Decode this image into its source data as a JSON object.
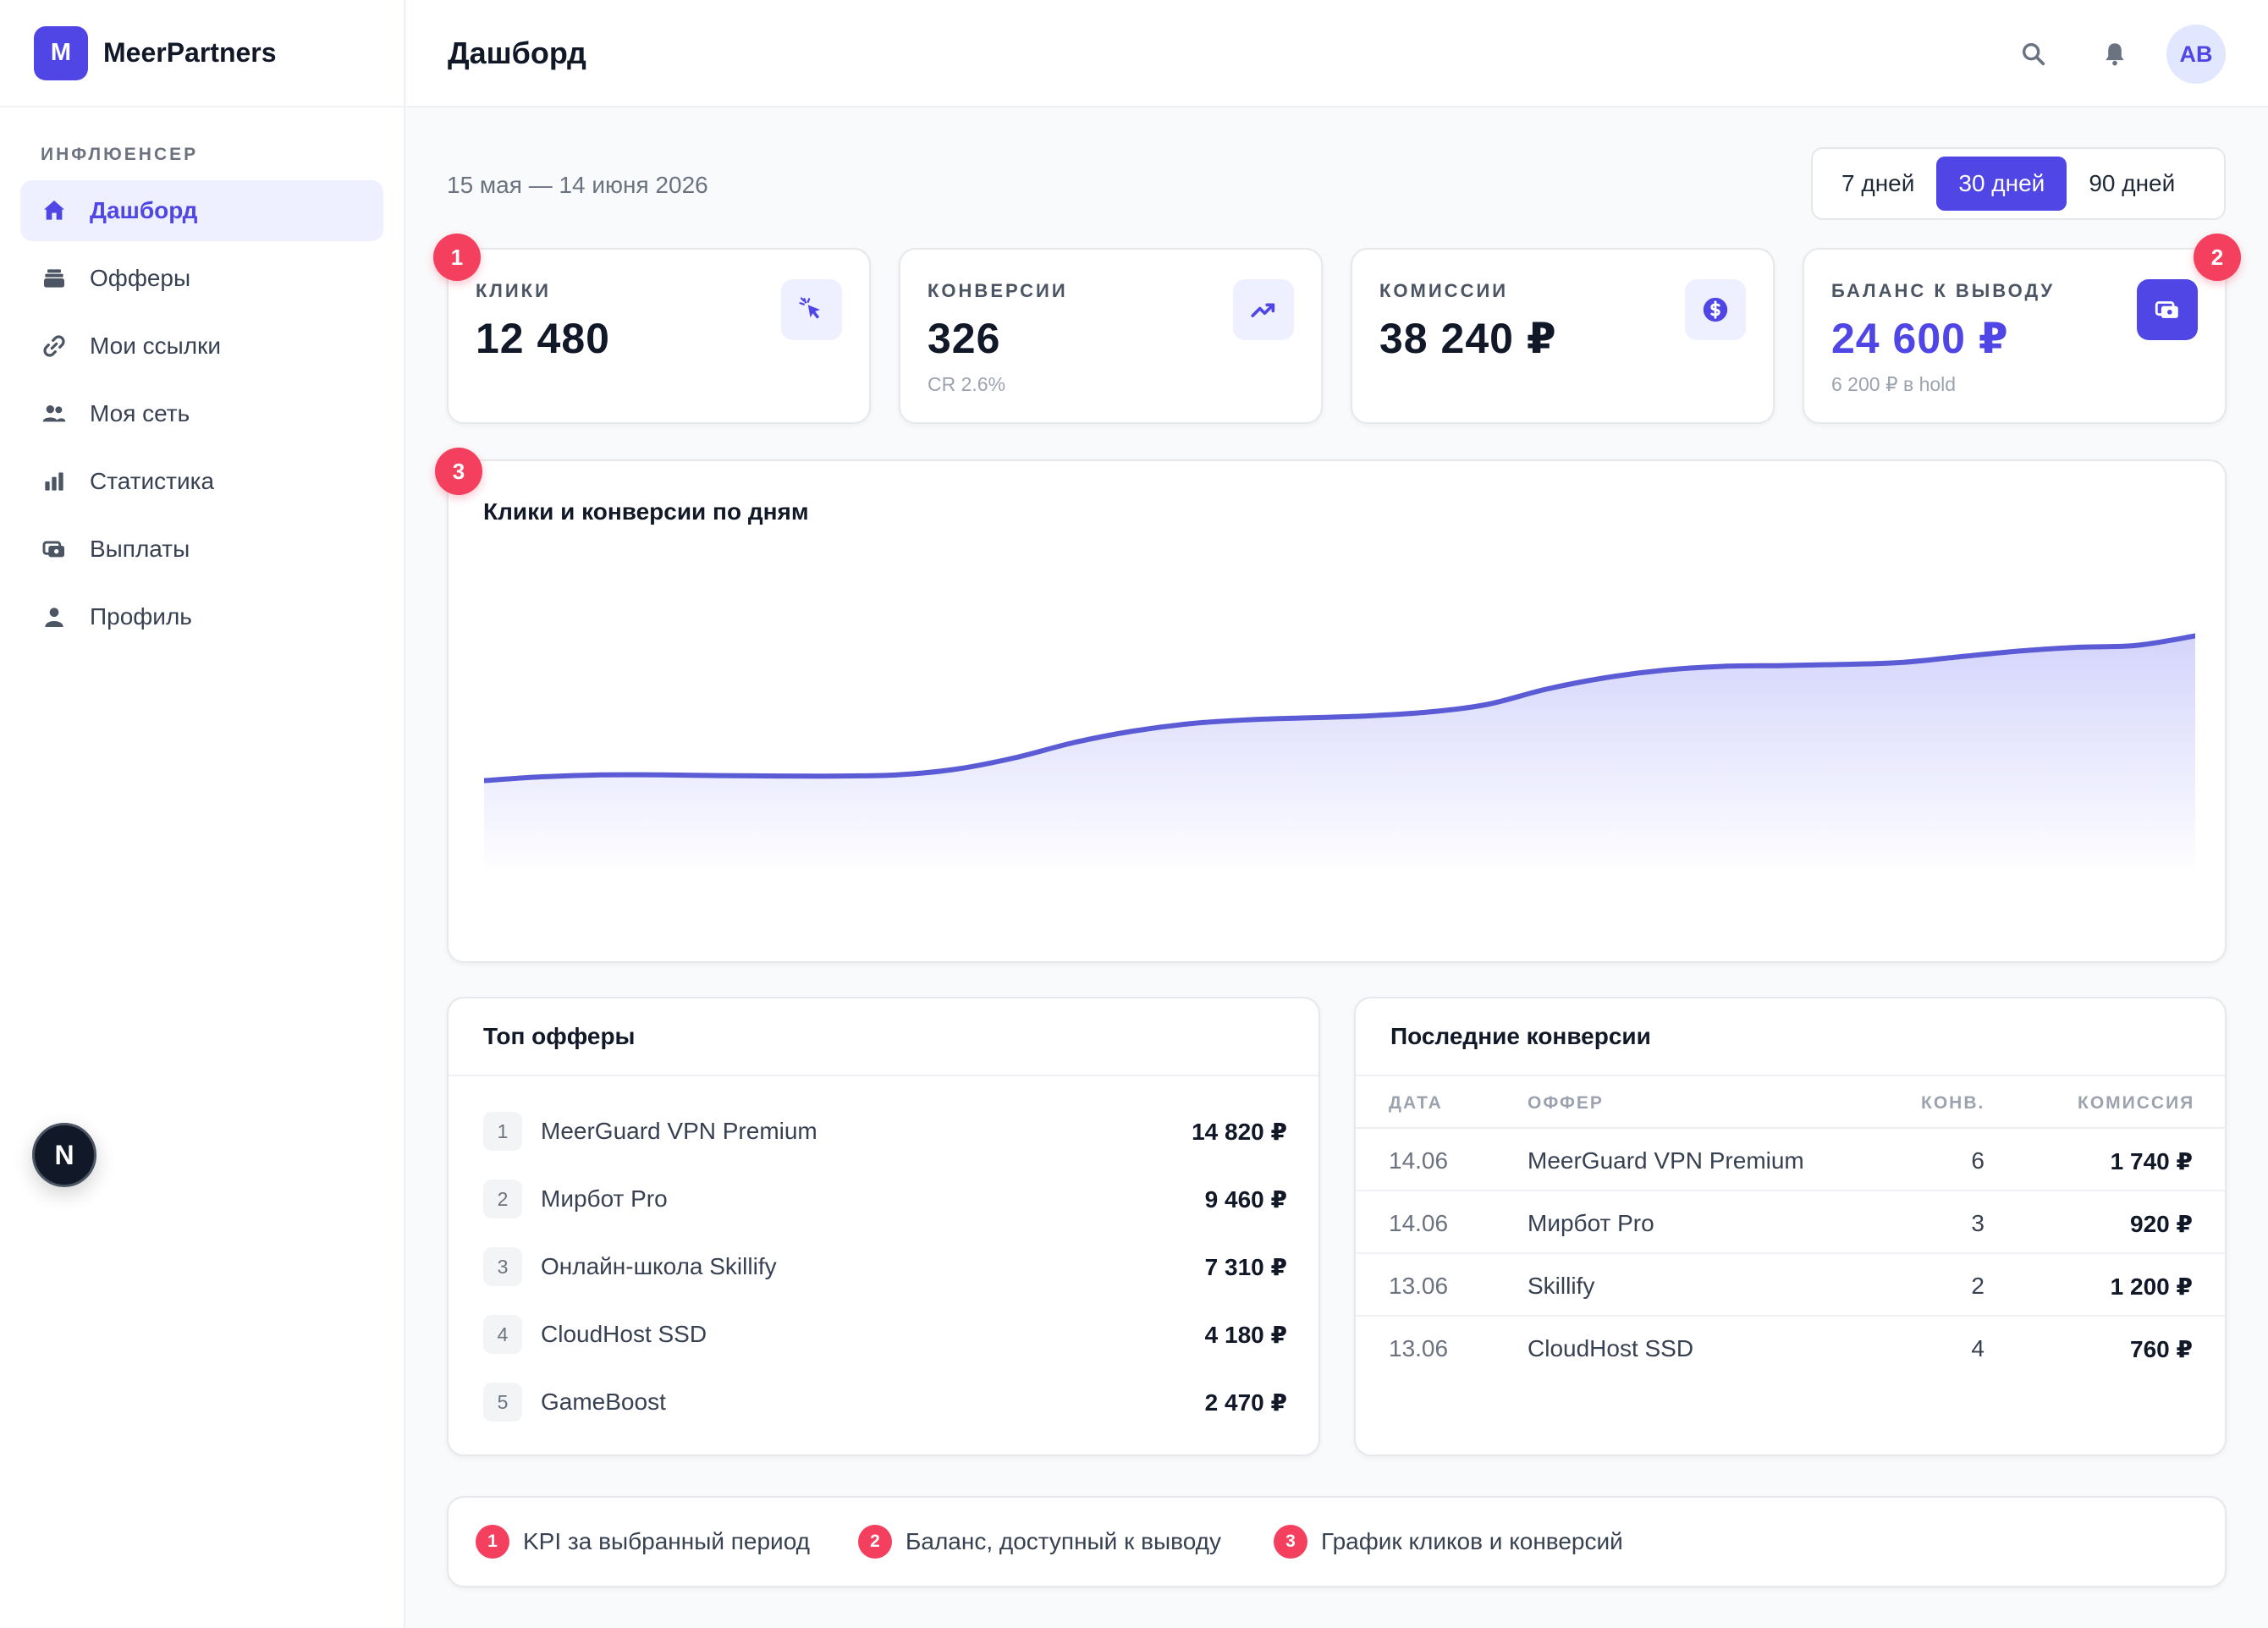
{
  "brand": {
    "logo_letter": "M",
    "name": "MeerPartners"
  },
  "sidebar": {
    "section_label": "ИНФЛЮЕНСЕР",
    "items": [
      {
        "label": "Дашборд",
        "icon": "home-icon",
        "active": true
      },
      {
        "label": "Офферы",
        "icon": "stack-icon"
      },
      {
        "label": "Мои ссылки",
        "icon": "link-icon"
      },
      {
        "label": "Моя сеть",
        "icon": "users-icon"
      },
      {
        "label": "Статистика",
        "icon": "bar-chart-icon"
      },
      {
        "label": "Выплаты",
        "icon": "payout-icon"
      },
      {
        "label": "Профиль",
        "icon": "person-icon"
      }
    ],
    "next_badge": "N"
  },
  "header": {
    "title": "Дашборд",
    "avatar_initials": "AB"
  },
  "filters": {
    "date_range": "15 мая — 14 июня 2026",
    "periods": [
      "7 дней",
      "30 дней",
      "90 дней"
    ],
    "active_period": "30 дней"
  },
  "kpis": [
    {
      "label": "КЛИКИ",
      "value": "12 480",
      "sub": "",
      "icon": "cursor-click-icon"
    },
    {
      "label": "КОНВЕРСИИ",
      "value": "326",
      "sub": "CR 2.6%",
      "icon": "trending-up-icon"
    },
    {
      "label": "КОМИССИИ",
      "value": "38 240 ₽",
      "sub": "",
      "icon": "dollar-coin-icon"
    },
    {
      "label": "БАЛАНС К ВЫВОДУ",
      "value": "24 600 ₽",
      "sub": "6 200 ₽ в hold",
      "icon": "wallet-icon"
    }
  ],
  "markers": [
    "1",
    "2",
    "3"
  ],
  "chart": {
    "title": "Клики и конверсии по дням",
    "accent": "#5b5bd6"
  },
  "chart_data": {
    "type": "area",
    "title": "Клики и конверсии по дням",
    "x": [
      1,
      2,
      3,
      4,
      5,
      6,
      7,
      8,
      9,
      10,
      11,
      12,
      13,
      14,
      15,
      16,
      17,
      18,
      19,
      20,
      21,
      22,
      23,
      24,
      25,
      26,
      27,
      28,
      29,
      30
    ],
    "values": [
      25,
      26,
      26.5,
      26.5,
      26.3,
      26.2,
      26.2,
      26.5,
      28,
      31,
      35,
      38,
      40,
      41,
      41.5,
      42,
      43,
      45,
      49,
      52,
      54,
      55,
      55.2,
      55.5,
      56,
      57.5,
      59,
      60,
      60.5,
      63
    ],
    "ylim": [
      0,
      80
    ],
    "grid": false,
    "legend": "none"
  },
  "top_offers": {
    "title": "Топ офферы",
    "items": [
      {
        "rank": "1",
        "name": "MeerGuard VPN Premium",
        "amount": "14 820 ₽"
      },
      {
        "rank": "2",
        "name": "Мирбот Pro",
        "amount": "9 460 ₽"
      },
      {
        "rank": "3",
        "name": "Онлайн-школа Skillify",
        "amount": "7 310 ₽"
      },
      {
        "rank": "4",
        "name": "CloudHost SSD",
        "amount": "4 180 ₽"
      },
      {
        "rank": "5",
        "name": "GameBoost",
        "amount": "2 470 ₽"
      }
    ]
  },
  "recent_conversions": {
    "title": "Последние конверсии",
    "columns": [
      "ДАТА",
      "ОФФЕР",
      "КОНВ.",
      "КОМИССИЯ"
    ],
    "rows": [
      {
        "date": "14.06",
        "offer": "MeerGuard VPN Premium",
        "conv": "6",
        "commission": "1 740 ₽"
      },
      {
        "date": "14.06",
        "offer": "Мирбот Pro",
        "conv": "3",
        "commission": "920 ₽"
      },
      {
        "date": "13.06",
        "offer": "Skillify",
        "conv": "2",
        "commission": "1 200 ₽"
      },
      {
        "date": "13.06",
        "offer": "CloudHost SSD",
        "conv": "4",
        "commission": "760 ₽"
      }
    ]
  },
  "legend": [
    {
      "num": "1",
      "text": "KPI за выбранный период"
    },
    {
      "num": "2",
      "text": "Баланс, доступный к выводу"
    },
    {
      "num": "3",
      "text": "График кликов и конверсий"
    }
  ],
  "colors": {
    "accent": "#4f46e5",
    "marker": "#f43f5e",
    "line": "#5b5bd6"
  }
}
